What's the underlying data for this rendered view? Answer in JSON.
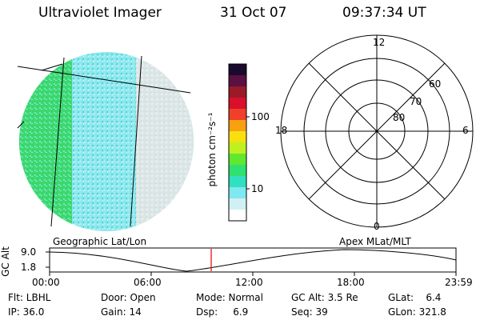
{
  "header": {
    "instrument": "Ultraviolet Imager",
    "date": "31 Oct 07",
    "time": "09:37:34 UT"
  },
  "colorbar": {
    "unit_label": "photon cm⁻²s⁻¹",
    "ticks": [
      "100",
      "10"
    ],
    "colors": [
      "#1a0a2e",
      "#5a1040",
      "#9a1a2a",
      "#d8102a",
      "#f0402a",
      "#f8a010",
      "#f8e010",
      "#c0f020",
      "#60e830",
      "#30e070",
      "#30e0c0",
      "#80e8f0",
      "#d0f0f4",
      "#ffffff"
    ]
  },
  "polar": {
    "mlt_labels": {
      "top": "12",
      "left": "18",
      "right": "6",
      "bottom": "0"
    },
    "lat_labels": [
      "60",
      "70",
      "80"
    ]
  },
  "timeline": {
    "y_axis_label": "GC Alt",
    "y_ticks": [
      "9.0",
      "1.8"
    ],
    "left_caption": "Geographic Lat/Lon",
    "right_caption": "Apex MLat/MLT",
    "x_ticks": [
      "00:00",
      "06:00",
      "12:00",
      "18:00",
      "23:59"
    ],
    "current_time_marker": "09:37:34",
    "marker_color": "#e00000"
  },
  "info": {
    "flt": "Flt: LBHL",
    "ip": "IP: 36.0",
    "door": "Door: Open",
    "gain": "Gain: 14",
    "mode": "Mode: Normal",
    "dsp": "Dsp:     6.9",
    "gc_alt": "GC Alt: 3.5 Re",
    "seq": "Seq: 39",
    "glat": "GLat:    6.4",
    "glon": "GLon: 321.8"
  }
}
